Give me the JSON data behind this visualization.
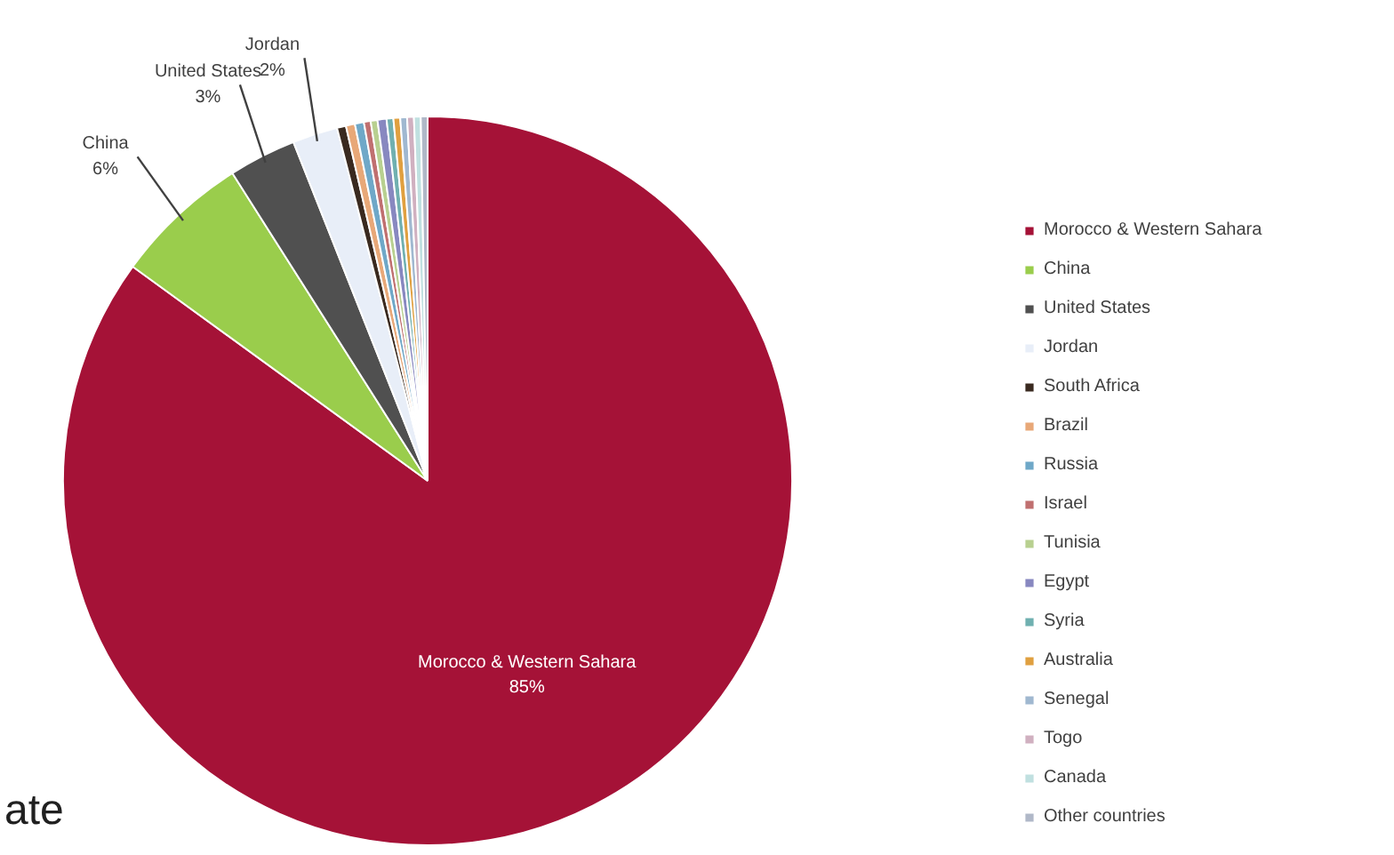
{
  "chart_data": {
    "type": "pie",
    "categories": [
      "Morocco & Western Sahara",
      "China",
      "United States",
      "Jordan",
      "South Africa",
      "Brazil",
      "Russia",
      "Israel",
      "Tunisia",
      "Egypt",
      "Syria",
      "Australia",
      "Senegal",
      "Togo",
      "Canada",
      "Other countries"
    ],
    "values": [
      85,
      6,
      3,
      2,
      0.4,
      0.4,
      0.4,
      0.3,
      0.3,
      0.4,
      0.3,
      0.3,
      0.3,
      0.3,
      0.3,
      0.3
    ],
    "colors": [
      "#a51237",
      "#9acd4c",
      "#505050",
      "#e8eef8",
      "#3a2a20",
      "#e8a878",
      "#6fa8c8",
      "#c07070",
      "#b8d090",
      "#8888c0",
      "#70b0b0",
      "#e0a040",
      "#a0b8d0",
      "#d0b0c0",
      "#c0e0e0",
      "#b0b8c8"
    ],
    "value_labels": [
      "85%",
      "6%",
      "3%",
      "2%",
      null,
      null,
      null,
      null,
      null,
      null,
      null,
      null,
      null,
      null,
      null,
      null
    ],
    "legend": "right",
    "annotations": [
      "ate"
    ]
  }
}
